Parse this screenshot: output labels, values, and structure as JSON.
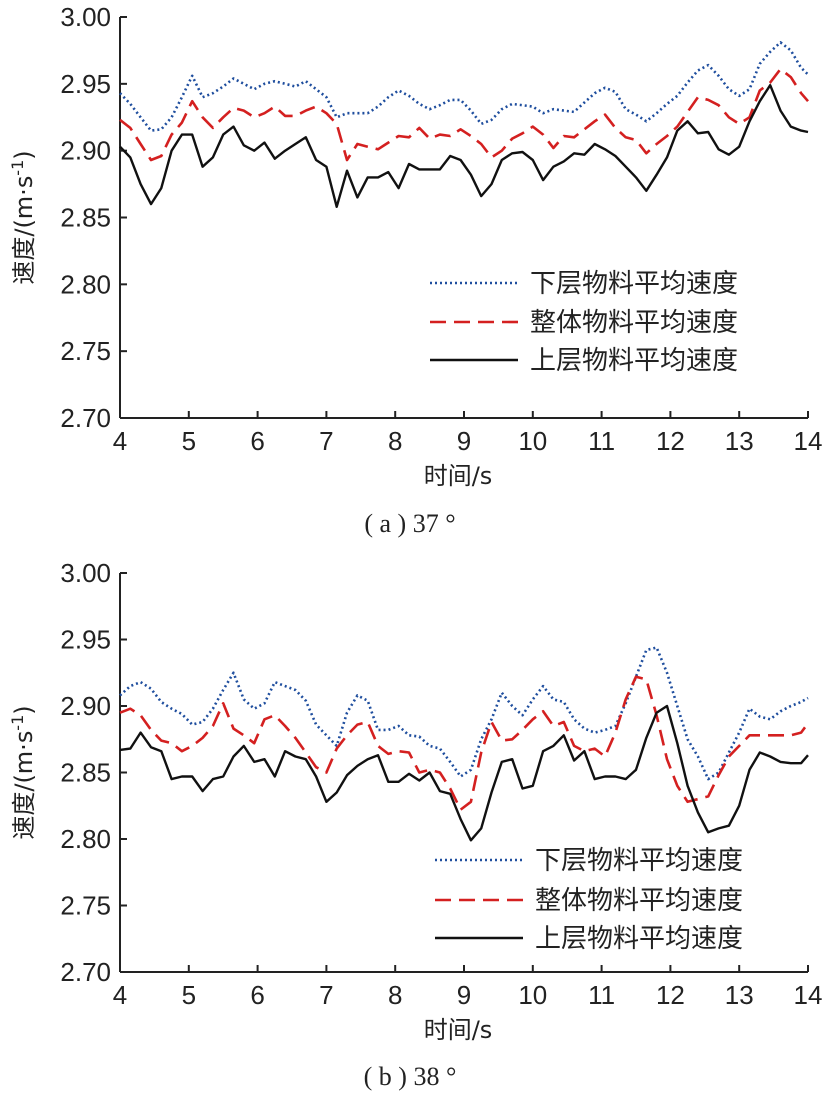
{
  "chart_data": [
    {
      "type": "line",
      "caption": "( a ) 37 °",
      "xlabel": "时间/s",
      "ylabel": "速度/(m·s",
      "ylabel_exp": "-1",
      "ylabel_close": ")",
      "xlim": [
        4,
        14
      ],
      "ylim": [
        2.7,
        3.0
      ],
      "xticks": [
        "4",
        "5",
        "6",
        "7",
        "8",
        "9",
        "10",
        "11",
        "12",
        "13",
        "14"
      ],
      "yticks": [
        "2.70",
        "2.75",
        "2.80",
        "2.85",
        "2.90",
        "2.95",
        "3.00"
      ],
      "legend_position": "lower-right",
      "x": [
        4.0,
        4.15,
        4.3,
        4.45,
        4.6,
        4.75,
        4.9,
        5.05,
        5.2,
        5.35,
        5.5,
        5.65,
        5.8,
        5.95,
        6.1,
        6.25,
        6.4,
        6.55,
        6.7,
        6.85,
        7.0,
        7.15,
        7.3,
        7.45,
        7.6,
        7.75,
        7.9,
        8.05,
        8.2,
        8.35,
        8.5,
        8.65,
        8.8,
        8.95,
        9.1,
        9.25,
        9.4,
        9.55,
        9.7,
        9.85,
        10.0,
        10.15,
        10.3,
        10.45,
        10.6,
        10.75,
        10.9,
        11.05,
        11.2,
        11.35,
        11.5,
        11.65,
        11.8,
        11.95,
        12.1,
        12.25,
        12.4,
        12.55,
        12.7,
        12.85,
        13.0,
        13.15,
        13.3,
        13.45,
        13.6,
        13.75,
        13.9,
        14.0
      ],
      "series": [
        {
          "name": "下层物料平均速度",
          "style": "dotted",
          "color": "#1f4e9e",
          "values": [
            2.943,
            2.935,
            2.925,
            2.915,
            2.916,
            2.925,
            2.94,
            2.956,
            2.94,
            2.943,
            2.948,
            2.954,
            2.95,
            2.946,
            2.95,
            2.952,
            2.95,
            2.948,
            2.952,
            2.946,
            2.94,
            2.925,
            2.928,
            2.928,
            2.928,
            2.933,
            2.94,
            2.945,
            2.941,
            2.935,
            2.931,
            2.934,
            2.938,
            2.938,
            2.93,
            2.92,
            2.923,
            2.931,
            2.935,
            2.934,
            2.933,
            2.928,
            2.931,
            2.93,
            2.929,
            2.936,
            2.943,
            2.947,
            2.944,
            2.931,
            2.927,
            2.922,
            2.928,
            2.935,
            2.941,
            2.951,
            2.96,
            2.964,
            2.956,
            2.946,
            2.941,
            2.946,
            2.965,
            2.974,
            2.981,
            2.975,
            2.962,
            2.957
          ]
        },
        {
          "name": "整体物料平均速度",
          "style": "dashed",
          "color": "#d42020",
          "values": [
            2.923,
            2.917,
            2.905,
            2.893,
            2.896,
            2.912,
            2.921,
            2.937,
            2.925,
            2.917,
            2.925,
            2.932,
            2.93,
            2.925,
            2.928,
            2.933,
            2.926,
            2.926,
            2.93,
            2.933,
            2.928,
            2.92,
            2.893,
            2.905,
            2.903,
            2.901,
            2.906,
            2.911,
            2.91,
            2.917,
            2.909,
            2.912,
            2.911,
            2.916,
            2.911,
            2.905,
            2.895,
            2.9,
            2.909,
            2.913,
            2.918,
            2.912,
            2.902,
            2.911,
            2.91,
            2.916,
            2.922,
            2.927,
            2.917,
            2.91,
            2.908,
            2.898,
            2.905,
            2.911,
            2.918,
            2.929,
            2.94,
            2.938,
            2.934,
            2.925,
            2.92,
            2.925,
            2.945,
            2.951,
            2.961,
            2.955,
            2.943,
            2.937
          ]
        },
        {
          "name": "上层物料平均速度",
          "style": "solid",
          "color": "#111111",
          "values": [
            2.903,
            2.895,
            2.875,
            2.86,
            2.872,
            2.9,
            2.912,
            2.912,
            2.888,
            2.895,
            2.912,
            2.918,
            2.904,
            2.9,
            2.906,
            2.894,
            2.9,
            2.905,
            2.91,
            2.893,
            2.888,
            2.858,
            2.885,
            2.865,
            2.88,
            2.88,
            2.884,
            2.872,
            2.89,
            2.886,
            2.886,
            2.886,
            2.896,
            2.893,
            2.882,
            2.866,
            2.875,
            2.893,
            2.898,
            2.899,
            2.893,
            2.878,
            2.888,
            2.892,
            2.898,
            2.897,
            2.905,
            2.901,
            2.896,
            2.888,
            2.88,
            2.87,
            2.882,
            2.895,
            2.915,
            2.922,
            2.913,
            2.914,
            2.901,
            2.897,
            2.903,
            2.922,
            2.937,
            2.949,
            2.93,
            2.918,
            2.915,
            2.914
          ]
        }
      ]
    },
    {
      "type": "line",
      "caption": "( b ) 38 °",
      "xlabel": "时间/s",
      "ylabel": "速度/(m·s",
      "ylabel_exp": "-1",
      "ylabel_close": ")",
      "xlim": [
        4,
        14
      ],
      "ylim": [
        2.7,
        3.0
      ],
      "xticks": [
        "4",
        "5",
        "6",
        "7",
        "8",
        "9",
        "10",
        "11",
        "12",
        "13",
        "14"
      ],
      "yticks": [
        "2.70",
        "2.75",
        "2.80",
        "2.85",
        "2.90",
        "2.95",
        "3.00"
      ],
      "legend_position": "lower-right",
      "x": [
        4.0,
        4.15,
        4.3,
        4.45,
        4.6,
        4.75,
        4.9,
        5.05,
        5.2,
        5.35,
        5.5,
        5.65,
        5.8,
        5.95,
        6.1,
        6.25,
        6.4,
        6.55,
        6.7,
        6.85,
        7.0,
        7.15,
        7.3,
        7.45,
        7.6,
        7.75,
        7.9,
        8.05,
        8.2,
        8.35,
        8.5,
        8.65,
        8.8,
        8.95,
        9.1,
        9.25,
        9.4,
        9.55,
        9.7,
        9.85,
        10.0,
        10.15,
        10.3,
        10.45,
        10.6,
        10.75,
        10.9,
        11.05,
        11.2,
        11.35,
        11.5,
        11.65,
        11.8,
        11.95,
        12.1,
        12.25,
        12.4,
        12.55,
        12.7,
        12.85,
        13.0,
        13.15,
        13.3,
        13.45,
        13.6,
        13.75,
        13.9,
        14.0
      ],
      "series": [
        {
          "name": "下层物料平均速度",
          "style": "dotted",
          "color": "#1f4e9e",
          "values": [
            2.908,
            2.915,
            2.918,
            2.913,
            2.903,
            2.898,
            2.894,
            2.886,
            2.888,
            2.898,
            2.912,
            2.925,
            2.905,
            2.898,
            2.902,
            2.918,
            2.915,
            2.912,
            2.904,
            2.886,
            2.878,
            2.87,
            2.895,
            2.908,
            2.904,
            2.882,
            2.882,
            2.885,
            2.878,
            2.877,
            2.87,
            2.868,
            2.858,
            2.847,
            2.852,
            2.875,
            2.89,
            2.91,
            2.9,
            2.893,
            2.905,
            2.915,
            2.905,
            2.903,
            2.89,
            2.883,
            2.88,
            2.882,
            2.885,
            2.902,
            2.922,
            2.942,
            2.944,
            2.925,
            2.9,
            2.875,
            2.862,
            2.845,
            2.85,
            2.865,
            2.88,
            2.898,
            2.892,
            2.89,
            2.896,
            2.9,
            2.903,
            2.906
          ]
        },
        {
          "name": "整体物料平均速度",
          "style": "dashed",
          "color": "#d42020",
          "values": [
            2.895,
            2.898,
            2.893,
            2.882,
            2.874,
            2.872,
            2.866,
            2.87,
            2.876,
            2.885,
            2.902,
            2.883,
            2.878,
            2.872,
            2.89,
            2.893,
            2.885,
            2.876,
            2.865,
            2.854,
            2.85,
            2.868,
            2.878,
            2.886,
            2.888,
            2.87,
            2.864,
            2.866,
            2.865,
            2.85,
            2.852,
            2.85,
            2.838,
            2.822,
            2.828,
            2.865,
            2.888,
            2.874,
            2.875,
            2.882,
            2.89,
            2.896,
            2.885,
            2.888,
            2.87,
            2.866,
            2.868,
            2.862,
            2.88,
            2.905,
            2.922,
            2.92,
            2.893,
            2.86,
            2.84,
            2.828,
            2.83,
            2.832,
            2.848,
            2.862,
            2.87,
            2.878,
            2.878,
            2.878,
            2.878,
            2.878,
            2.88,
            2.887
          ]
        },
        {
          "name": "上层物料平均速度",
          "style": "solid",
          "color": "#111111",
          "values": [
            2.867,
            2.868,
            2.88,
            2.869,
            2.866,
            2.845,
            2.847,
            2.847,
            2.836,
            2.845,
            2.847,
            2.862,
            2.87,
            2.858,
            2.86,
            2.847,
            2.866,
            2.862,
            2.86,
            2.847,
            2.828,
            2.835,
            2.848,
            2.855,
            2.86,
            2.863,
            2.843,
            2.843,
            2.849,
            2.844,
            2.85,
            2.836,
            2.834,
            2.815,
            2.799,
            2.808,
            2.835,
            2.858,
            2.86,
            2.838,
            2.84,
            2.866,
            2.87,
            2.878,
            2.859,
            2.866,
            2.845,
            2.847,
            2.847,
            2.845,
            2.852,
            2.876,
            2.895,
            2.9,
            2.872,
            2.84,
            2.82,
            2.805,
            2.808,
            2.81,
            2.825,
            2.852,
            2.865,
            2.862,
            2.858,
            2.857,
            2.857,
            2.863
          ]
        }
      ]
    }
  ]
}
